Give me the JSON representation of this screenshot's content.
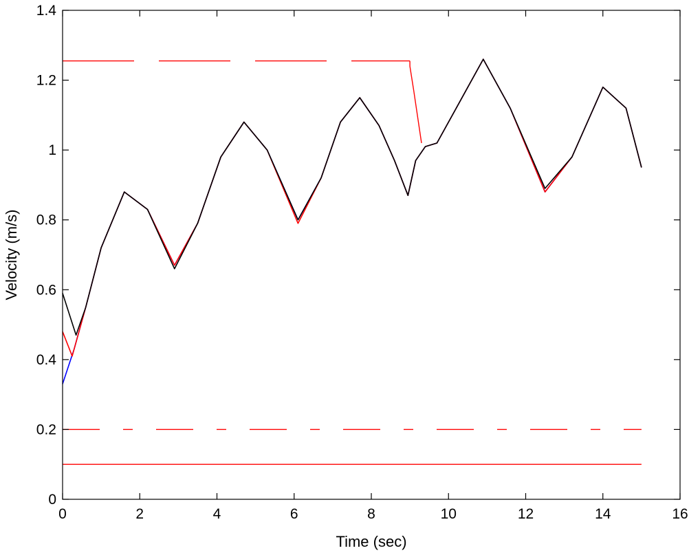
{
  "chart_data": {
    "type": "line",
    "title": "",
    "xlabel": "Time (sec)",
    "ylabel": "Velocity (m/s)",
    "xlim": [
      0,
      16
    ],
    "ylim": [
      0,
      1.4
    ],
    "xticks": [
      "0",
      "2",
      "4",
      "6",
      "8",
      "10",
      "12",
      "14",
      "16"
    ],
    "yticks": [
      "0",
      "0.2",
      "0.4",
      "0.6",
      "0.8",
      "1",
      "1.2",
      "1.4"
    ],
    "grid": false,
    "legend": "none",
    "series": [
      {
        "color": "#0000ff",
        "style": "solid",
        "x": [
          0,
          0.3,
          0.6,
          1.0,
          1.6,
          2.2,
          2.9,
          3.5,
          4.1,
          4.7,
          5.3,
          6.1,
          6.7,
          7.2,
          7.7,
          8.2,
          8.6,
          8.95,
          9.15,
          9.4,
          9.7,
          10.2,
          10.9,
          11.6,
          12.5,
          13.2,
          14.0,
          14.6,
          15.0
        ],
        "y": [
          0.33,
          0.43,
          0.55,
          0.72,
          0.88,
          0.83,
          0.67,
          0.79,
          0.98,
          1.08,
          1.0,
          0.8,
          0.92,
          1.08,
          1.15,
          1.07,
          0.97,
          0.87,
          0.97,
          1.01,
          1.02,
          1.12,
          1.26,
          1.12,
          0.88,
          0.98,
          1.18,
          1.12,
          0.95
        ]
      },
      {
        "color": "#ff0000",
        "style": "solid",
        "x": [
          0,
          0.25,
          0.6,
          1.0,
          1.6,
          2.2,
          2.9,
          3.5,
          4.1,
          4.7,
          5.3,
          6.1,
          6.7,
          7.2,
          7.7,
          8.2,
          8.6,
          8.95,
          9.15,
          9.4,
          9.7,
          10.2,
          10.9,
          11.6,
          12.5,
          13.2,
          14.0,
          14.6,
          15.0
        ],
        "y": [
          0.48,
          0.41,
          0.55,
          0.72,
          0.88,
          0.83,
          0.67,
          0.79,
          0.98,
          1.08,
          1.0,
          0.79,
          0.92,
          1.08,
          1.15,
          1.07,
          0.97,
          0.87,
          0.97,
          1.01,
          1.02,
          1.12,
          1.26,
          1.12,
          0.88,
          0.98,
          1.18,
          1.12,
          0.95
        ]
      },
      {
        "color": "#000000",
        "style": "solid",
        "x": [
          0,
          0.35,
          0.6,
          1.0,
          1.6,
          2.2,
          2.9,
          3.5,
          4.1,
          4.7,
          5.3,
          6.1,
          6.7,
          7.2,
          7.7,
          8.2,
          8.6,
          8.95,
          9.15,
          9.4,
          9.7,
          10.2,
          10.9,
          11.6,
          12.5,
          13.2,
          14.0,
          14.6,
          15.0
        ],
        "y": [
          0.59,
          0.47,
          0.55,
          0.72,
          0.88,
          0.83,
          0.66,
          0.79,
          0.98,
          1.08,
          1.0,
          0.8,
          0.92,
          1.08,
          1.15,
          1.07,
          0.97,
          0.87,
          0.97,
          1.01,
          1.02,
          1.12,
          1.26,
          1.12,
          0.89,
          0.98,
          1.18,
          1.12,
          0.95
        ]
      },
      {
        "color": "#ff0000",
        "style": "dashed",
        "x": [
          0,
          9.0
        ],
        "y": [
          1.255,
          1.255
        ]
      },
      {
        "color": "#ff0000",
        "style": "solid",
        "x": [
          9.0,
          9.0,
          9.1,
          9.3
        ],
        "y": [
          1.255,
          1.24,
          1.17,
          1.02
        ]
      },
      {
        "color": "#ff0000",
        "style": "dashdot",
        "x": [
          0,
          15.0
        ],
        "y": [
          0.2,
          0.2
        ]
      },
      {
        "color": "#ff0000",
        "style": "solid",
        "x": [
          0,
          15.0
        ],
        "y": [
          0.1,
          0.1
        ]
      }
    ]
  }
}
